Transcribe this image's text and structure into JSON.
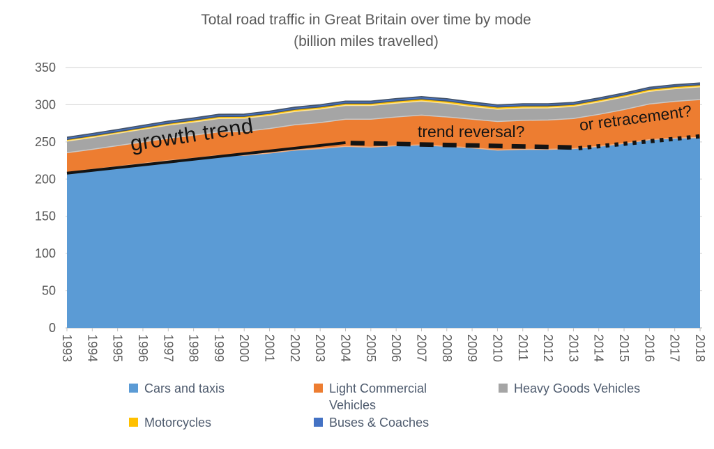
{
  "title": {
    "line1": "Total road traffic in Great Britain over time by mode",
    "line2": "(billion miles travelled)"
  },
  "chart_data": {
    "type": "area",
    "stacked": true,
    "title": "Total road traffic in Great Britain over time by mode (billion miles travelled)",
    "xlabel": "",
    "ylabel": "",
    "ylim": [
      0,
      350
    ],
    "ytick_step": 50,
    "grid": true,
    "legend_position": "bottom",
    "x": [
      1993,
      1994,
      1995,
      1996,
      1997,
      1998,
      1999,
      2000,
      2001,
      2002,
      2003,
      2004,
      2005,
      2006,
      2007,
      2008,
      2009,
      2010,
      2011,
      2012,
      2013,
      2014,
      2015,
      2016,
      2017,
      2018
    ],
    "series": [
      {
        "name": "Cars and taxis",
        "color": "#5B9BD5",
        "edge": "#9DC3E6",
        "values": [
          209,
          213,
          217,
          221,
          225,
          228,
          232,
          232,
          235,
          239,
          241,
          244,
          243,
          245,
          246,
          244,
          242,
          239,
          240,
          240,
          241,
          244,
          248,
          253,
          255,
          256
        ]
      },
      {
        "name": "Light Commercial Vehicles",
        "color": "#ED7D31",
        "edge": "#F4B183",
        "values": [
          26.5,
          27,
          28,
          29,
          30,
          31,
          31.5,
          32,
          33,
          34,
          35,
          36.5,
          37.5,
          38.5,
          40,
          39.5,
          38.5,
          38.5,
          39,
          39.5,
          40.5,
          43,
          45.5,
          48,
          49.5,
          51
        ]
      },
      {
        "name": "Heavy Goods Vehicles",
        "color": "#A5A5A5",
        "edge": "#C9C9C9",
        "values": [
          15.5,
          16,
          16.5,
          17,
          17.5,
          17.7,
          18,
          17.8,
          17.7,
          17.9,
          18.2,
          18.5,
          18.5,
          18.7,
          18.8,
          18.4,
          17,
          16.5,
          16.5,
          16.2,
          16.2,
          16.7,
          16.8,
          17,
          17.1,
          17
        ]
      },
      {
        "name": "Motorcycles",
        "color": "#FFC000",
        "edge": "#FFE699",
        "values": [
          2.3,
          2.3,
          2.2,
          2.3,
          2.4,
          2.5,
          2.6,
          2.6,
          2.7,
          2.8,
          2.8,
          2.8,
          2.8,
          2.9,
          3,
          3.1,
          3.1,
          2.9,
          2.9,
          2.8,
          2.7,
          2.8,
          2.8,
          2.8,
          2.8,
          2.8
        ]
      },
      {
        "name": "Buses & Coaches",
        "color": "#4472C4",
        "edge": "#44546A",
        "values": [
          2.9,
          2.9,
          2.9,
          2.9,
          2.9,
          2.9,
          2.9,
          2.9,
          2.9,
          2.9,
          2.9,
          2.9,
          2.9,
          3,
          3,
          3,
          2.9,
          2.8,
          2.8,
          2.7,
          2.6,
          2.6,
          2.5,
          2.5,
          2.4,
          2.4
        ]
      }
    ],
    "annotations": {
      "lines": [
        {
          "style": "solid",
          "x1": 1993,
          "y1": 208,
          "x2": 2004,
          "y2": 249
        },
        {
          "style": "dashed",
          "x1": 2004.2,
          "y1": 248.5,
          "x2": 2013,
          "y2": 242.5
        },
        {
          "style": "dotted",
          "x1": 2013.2,
          "y1": 241.5,
          "x2": 2018,
          "y2": 257.5
        }
      ],
      "labels": [
        {
          "text": "growth trend"
        },
        {
          "text": "trend reversal?"
        },
        {
          "text": "or retracement?"
        }
      ]
    }
  },
  "colors": {
    "grid": "#D9D9D9",
    "axis": "#BFBFBF",
    "axis_text": "#595959",
    "annotation": "#141414",
    "outer_edge": "#44546A"
  }
}
